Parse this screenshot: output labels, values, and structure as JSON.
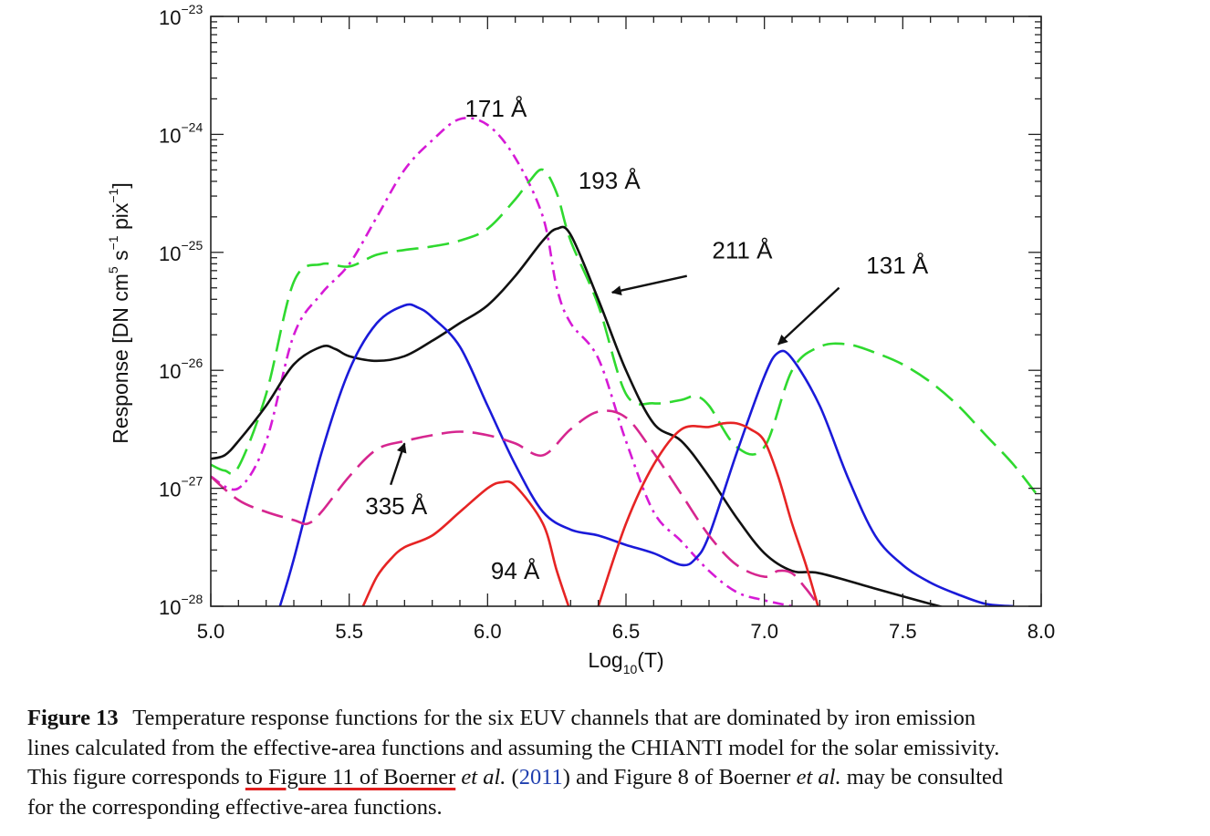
{
  "chart_data": {
    "type": "line",
    "xlabel": "Log",
    "xlabel_sub": "10",
    "xlabel_tail": "(T)",
    "ylabel_parts": [
      "Response [DN cm",
      "5",
      " s",
      "−1",
      " pix",
      "−1",
      "]"
    ],
    "x_ticks": [
      "5.0",
      "5.5",
      "6.0",
      "6.5",
      "7.0",
      "7.5",
      "8.0"
    ],
    "y_ticks": [
      {
        "base": "10",
        "exp": "−23",
        "value": -23
      },
      {
        "base": "10",
        "exp": "−24",
        "value": -24
      },
      {
        "base": "10",
        "exp": "−25",
        "value": -25
      },
      {
        "base": "10",
        "exp": "−26",
        "value": -26
      },
      {
        "base": "10",
        "exp": "−27",
        "value": -27
      },
      {
        "base": "10",
        "exp": "−28",
        "value": -28
      }
    ],
    "xlim": [
      5.0,
      8.0
    ],
    "ylim_log10": [
      -28,
      -23
    ],
    "yscale": "log",
    "grid": false,
    "series": [
      {
        "name": "171 Å",
        "color": "#d61ad6",
        "dash": "12,6,3,6",
        "x": [
          5.0,
          5.1,
          5.2,
          5.3,
          5.4,
          5.5,
          5.6,
          5.7,
          5.8,
          5.9,
          6.0,
          6.1,
          6.2,
          6.25,
          6.3,
          6.4,
          6.5,
          6.6,
          6.7,
          6.8,
          6.9,
          7.0,
          7.1,
          7.2,
          7.4,
          7.6
        ],
        "log_y": [
          -26.9,
          -27.0,
          -26.6,
          -25.7,
          -25.35,
          -25.1,
          -24.7,
          -24.3,
          -24.05,
          -23.87,
          -23.92,
          -24.2,
          -24.7,
          -25.3,
          -25.6,
          -25.9,
          -26.6,
          -27.2,
          -27.45,
          -27.7,
          -27.88,
          -27.95,
          -28.0,
          -28.05,
          -28.15,
          -28.27
        ]
      },
      {
        "name": "193 Å",
        "color": "#2fd92f",
        "dash": "24,10",
        "x": [
          5.0,
          5.05,
          5.1,
          5.2,
          5.3,
          5.4,
          5.5,
          5.6,
          5.7,
          5.8,
          5.9,
          6.0,
          6.1,
          6.15,
          6.2,
          6.25,
          6.3,
          6.4,
          6.5,
          6.6,
          6.7,
          6.75,
          6.8,
          6.9,
          7.0,
          7.1,
          7.2,
          7.3,
          7.4,
          7.5,
          7.6,
          7.7,
          7.8,
          7.9,
          8.0
        ],
        "log_y": [
          -26.8,
          -26.85,
          -26.82,
          -26.2,
          -25.25,
          -25.1,
          -25.12,
          -25.02,
          -24.98,
          -24.95,
          -24.9,
          -24.8,
          -24.55,
          -24.4,
          -24.3,
          -24.5,
          -24.9,
          -25.45,
          -26.2,
          -26.28,
          -26.25,
          -26.22,
          -26.3,
          -26.65,
          -26.65,
          -26.0,
          -25.8,
          -25.78,
          -25.85,
          -25.95,
          -26.1,
          -26.3,
          -26.55,
          -26.8,
          -27.1
        ]
      },
      {
        "name": "211 Å",
        "color": "#111111",
        "dash": "",
        "x": [
          5.0,
          5.05,
          5.1,
          5.2,
          5.3,
          5.4,
          5.45,
          5.5,
          5.6,
          5.7,
          5.8,
          5.9,
          6.0,
          6.1,
          6.2,
          6.25,
          6.3,
          6.4,
          6.5,
          6.6,
          6.7,
          6.8,
          6.9,
          7.0,
          7.1,
          7.2,
          7.4,
          7.6,
          7.8
        ],
        "log_y": [
          -26.75,
          -26.72,
          -26.6,
          -26.3,
          -25.95,
          -25.8,
          -25.82,
          -25.88,
          -25.92,
          -25.88,
          -25.75,
          -25.6,
          -25.45,
          -25.2,
          -24.9,
          -24.8,
          -24.85,
          -25.4,
          -26.0,
          -26.45,
          -26.6,
          -26.9,
          -27.25,
          -27.55,
          -27.7,
          -27.72,
          -27.85,
          -27.98,
          -28.1
        ]
      },
      {
        "name": "131 Å",
        "color": "#1a1ad9",
        "dash": "",
        "x": [
          5.25,
          5.3,
          5.4,
          5.5,
          5.6,
          5.7,
          5.75,
          5.8,
          5.9,
          6.0,
          6.1,
          6.2,
          6.3,
          6.4,
          6.5,
          6.6,
          6.7,
          6.75,
          6.8,
          6.9,
          7.0,
          7.05,
          7.1,
          7.2,
          7.3,
          7.4,
          7.5,
          7.6,
          7.7,
          7.8,
          7.9
        ],
        "log_y": [
          -28.0,
          -27.6,
          -26.7,
          -26.0,
          -25.6,
          -25.45,
          -25.47,
          -25.55,
          -25.8,
          -26.3,
          -26.8,
          -27.2,
          -27.35,
          -27.4,
          -27.48,
          -27.55,
          -27.65,
          -27.6,
          -27.4,
          -26.7,
          -26.05,
          -25.85,
          -25.9,
          -26.3,
          -26.9,
          -27.4,
          -27.65,
          -27.8,
          -27.9,
          -27.98,
          -28.0
        ]
      },
      {
        "name": "335 Å",
        "color": "#d6268f",
        "dash": "24,10",
        "x": [
          5.0,
          5.1,
          5.2,
          5.3,
          5.35,
          5.4,
          5.5,
          5.6,
          5.7,
          5.8,
          5.9,
          6.0,
          6.1,
          6.2,
          6.3,
          6.4,
          6.5,
          6.6,
          6.7,
          6.8,
          6.9,
          7.0,
          7.05,
          7.1,
          7.15,
          7.2,
          7.25
        ],
        "log_y": [
          -26.9,
          -27.1,
          -27.2,
          -27.27,
          -27.3,
          -27.2,
          -26.9,
          -26.67,
          -26.6,
          -26.55,
          -26.52,
          -26.55,
          -26.62,
          -26.72,
          -26.5,
          -26.35,
          -26.4,
          -26.7,
          -27.05,
          -27.4,
          -27.65,
          -27.75,
          -27.7,
          -27.72,
          -27.85,
          -28.0,
          -28.1
        ]
      },
      {
        "name": "94 Å",
        "color": "#e62424",
        "dash": "",
        "x": [
          5.55,
          5.6,
          5.65,
          5.7,
          5.8,
          5.9,
          6.0,
          6.05,
          6.1,
          6.2,
          6.25,
          6.3
        ],
        "log_y": [
          -28.0,
          -27.75,
          -27.6,
          -27.5,
          -27.4,
          -27.2,
          -27.0,
          -26.95,
          -26.98,
          -27.3,
          -27.7,
          -28.05
        ]
      },
      {
        "name": "94 Å",
        "color": "#e62424",
        "dash": "",
        "x": [
          6.4,
          6.5,
          6.6,
          6.7,
          6.8,
          6.85,
          6.9,
          6.95,
          7.0,
          7.05,
          7.1,
          7.15,
          7.2
        ],
        "log_y": [
          -28.0,
          -27.3,
          -26.8,
          -26.5,
          -26.48,
          -26.45,
          -26.45,
          -26.5,
          -26.6,
          -26.9,
          -27.3,
          -27.65,
          -28.05
        ]
      }
    ],
    "annotations": [
      {
        "text": "171 Å",
        "x": 6.03,
        "log_y": -23.85
      },
      {
        "text": "193 Å",
        "x": 6.44,
        "log_y": -24.46
      },
      {
        "text": "211 Å",
        "x": 6.92,
        "log_y": -25.05,
        "arrow_to": [
          6.45,
          -25.34
        ],
        "arrow_from": [
          6.72,
          -25.2
        ]
      },
      {
        "text": "131 Å",
        "x": 7.48,
        "log_y": -25.18,
        "arrow_to": [
          7.05,
          -25.78
        ],
        "arrow_from": [
          7.27,
          -25.3
        ]
      },
      {
        "text": "335 Å",
        "x": 5.67,
        "log_y": -27.22,
        "arrow_to": [
          5.7,
          -26.62
        ],
        "arrow_from": [
          5.65,
          -26.97
        ]
      },
      {
        "text": "94 Å",
        "x": 6.1,
        "log_y": -27.77
      }
    ]
  },
  "caption": {
    "figure_label": "Figure 13",
    "line1": "Temperature response functions for the six EUV channels that are dominated by iron emission",
    "line2": "lines calculated from the effective-area functions and assuming the CHIANTI model for the solar emissivity.",
    "line3_a": "This figure corresponds ",
    "line3_link": "to Figure 11 of Boerner",
    "line3_etal": " et al.",
    "line3_open": " (",
    "line3_year": "2011",
    "line3_close": ") and Figure 8 of Boerner ",
    "line3_etal2": "et al.",
    "line3_end": " may be consulted",
    "line4": "for the corresponding effective-area functions."
  }
}
